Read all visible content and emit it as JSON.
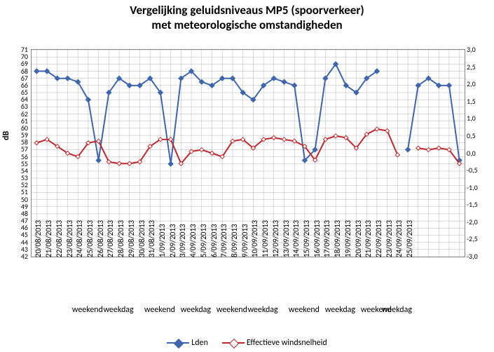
{
  "chart": {
    "title_line1": "Vergelijking geluidsniveaus MP5 (spoorverkeer)",
    "title_line2": "met meteorologische omstandigheden",
    "y1_label": "dB",
    "y1_min": 42,
    "y1_max": 71,
    "y1_step": 1,
    "y2_min": -3.0,
    "y2_max": 3.0,
    "y2_step": 0.5,
    "background_color": "#ffffff",
    "plot_bg": "#ffffff",
    "grid_color": "#b7b7b7",
    "axis_color": "#888888",
    "series": [
      {
        "name": "Lden",
        "color": "#3e66ae",
        "line_width": 2,
        "marker": "diamond",
        "marker_size": 7,
        "axis": "y1",
        "y": [
          68,
          68,
          67,
          67,
          66.5,
          64,
          55.5,
          65,
          67,
          66,
          66,
          67,
          65,
          55,
          67,
          68,
          66.5,
          66,
          67,
          67,
          65,
          64,
          66,
          67,
          66.5,
          66,
          55.5,
          57,
          67,
          69,
          66,
          65,
          67,
          68,
          null,
          null,
          57,
          66,
          67,
          66,
          66,
          55.5
        ]
      },
      {
        "name": "Effectieve windsnelheid",
        "color": "#c0272d",
        "line_width": 2,
        "marker": "diamond-open",
        "marker_size": 6,
        "axis": "y2",
        "y": [
          0.3,
          0.4,
          0.2,
          0.0,
          -0.1,
          0.3,
          0.35,
          -0.25,
          -0.3,
          -0.3,
          -0.25,
          0.2,
          0.4,
          0.4,
          -0.3,
          0.05,
          0.1,
          0.0,
          -0.1,
          0.35,
          0.4,
          0.15,
          0.4,
          0.45,
          0.4,
          0.35,
          0.2,
          -0.2,
          0.4,
          0.5,
          0.45,
          0.15,
          0.55,
          0.7,
          0.65,
          -0.05,
          null,
          0.15,
          0.1,
          0.15,
          0.1,
          -0.3
        ]
      }
    ],
    "x_labels": [
      "20/08/2013",
      "21/08/2013",
      "22/08/2013",
      "23/08/2013",
      "24/08/2013",
      "25/08/2013",
      "26/08/2013",
      "27/08/2013",
      "28/08/2013",
      "29/08/2013",
      "30/08/2013",
      "31/08/2013",
      "1/09/2013",
      "2/09/2013",
      "3/09/2013",
      "4/09/2013",
      "5/09/2013",
      "6/09/2013",
      "7/09/2013",
      "8/09/2013",
      "9/09/2013",
      "10/09/2013",
      "11/09/2013",
      "12/09/2013",
      "13/09/2013",
      "14/09/2013",
      "15/09/2013",
      "16/09/2013",
      "17/09/2013",
      "18/09/2013",
      "19/09/2013",
      "20/09/2013",
      "21/09/2013",
      "22/09/2013",
      "23/09/2013",
      "24/09/2013",
      "25/09/2013",
      "",
      "",
      "",
      "",
      ""
    ],
    "x_groups": [
      {
        "label": "weekend",
        "span": [
          4,
          5
        ]
      },
      {
        "label": "weekdag",
        "span": [
          6,
          10
        ]
      },
      {
        "label": "weekend",
        "span": [
          11,
          13
        ]
      },
      {
        "label": "weekdag",
        "span": [
          14,
          17
        ]
      },
      {
        "label": "weekend",
        "span": [
          18,
          19
        ]
      },
      {
        "label": "weekdag",
        "span": [
          20,
          24
        ]
      },
      {
        "label": "weekend",
        "span": [
          25,
          27
        ]
      },
      {
        "label": "weekdag",
        "span": [
          28,
          31
        ]
      },
      {
        "label": "weekend",
        "span": [
          32,
          33
        ]
      },
      {
        "label": "weekdag",
        "span": [
          34,
          36
        ]
      }
    ],
    "legend": [
      {
        "label": "Lden",
        "series": 0
      },
      {
        "label": "Effectieve windsnelheid",
        "series": 1
      }
    ]
  }
}
